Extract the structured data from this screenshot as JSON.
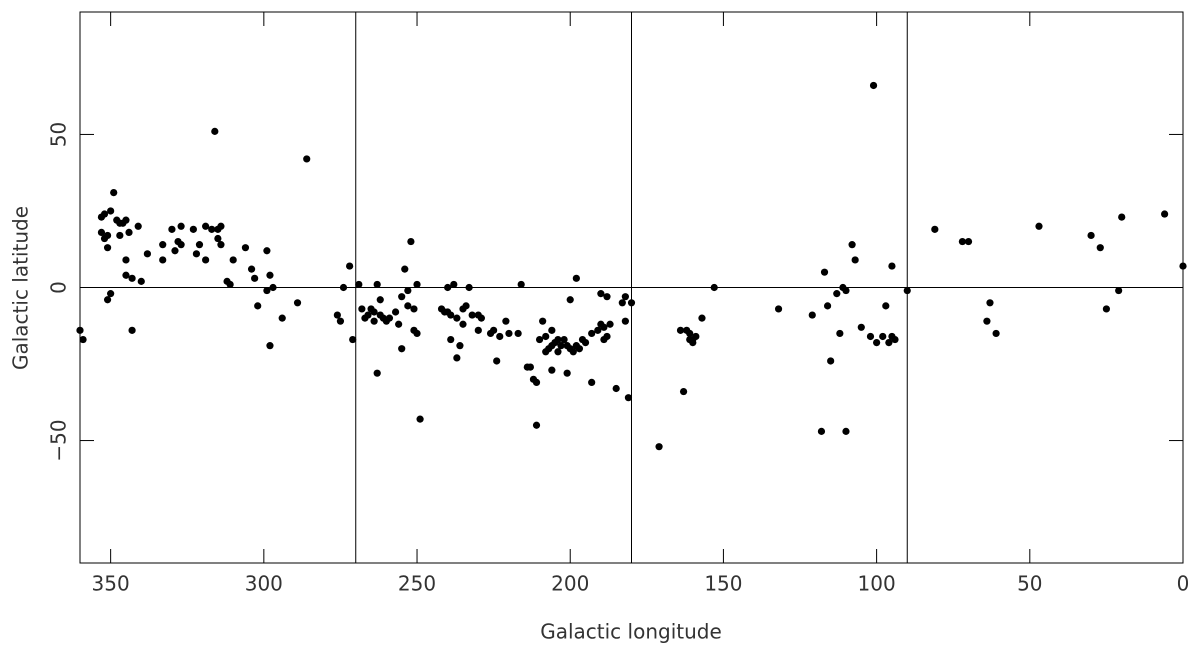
{
  "chart_data": {
    "type": "scatter",
    "xlabel": "Galactic longitude",
    "ylabel": "Galactic latitude",
    "xlim": [
      360,
      0
    ],
    "ylim": [
      -90,
      90
    ],
    "xticks": [
      350,
      300,
      250,
      200,
      150,
      100,
      50,
      0
    ],
    "yticks": [
      {
        "value": -50,
        "label": "−50"
      },
      0,
      50
    ],
    "vlines": [
      270,
      180,
      90
    ],
    "hlines": [
      0
    ],
    "color": "#000000",
    "x": [
      360,
      359,
      353,
      352,
      353,
      352,
      351,
      350,
      351,
      350,
      351,
      349,
      348,
      347,
      347,
      346,
      345,
      345,
      345,
      344,
      343,
      343,
      341,
      340,
      338,
      333,
      333,
      330,
      329,
      328,
      327,
      327,
      323,
      322,
      321,
      319,
      319,
      317,
      316,
      315,
      315,
      314,
      314,
      312,
      311,
      310,
      306,
      304,
      303,
      302,
      299,
      299,
      298,
      298,
      297,
      294,
      289,
      286,
      276,
      275,
      274,
      272,
      271,
      269,
      268,
      267,
      266,
      265,
      264,
      264,
      263,
      263,
      262,
      262,
      261,
      260,
      259,
      257,
      256,
      255,
      255,
      254,
      253,
      253,
      252,
      251,
      251,
      250,
      250,
      249,
      242,
      241,
      240,
      240,
      239,
      239,
      238,
      237,
      237,
      236,
      235,
      235,
      234,
      233,
      232,
      230,
      230,
      229,
      226,
      225,
      224,
      223,
      221,
      220,
      217,
      216,
      214,
      213,
      212,
      211,
      211,
      210,
      209,
      208,
      208,
      207,
      206,
      206,
      206,
      205,
      204,
      204,
      203,
      202,
      201,
      201,
      200,
      200,
      199,
      198,
      198,
      197,
      196,
      195,
      193,
      193,
      191,
      190,
      190,
      189,
      189,
      188,
      188,
      187,
      185,
      183,
      182,
      182,
      181,
      180,
      171,
      164,
      163,
      162,
      161,
      161,
      160,
      160,
      159,
      157,
      153,
      132,
      121,
      118,
      117,
      116,
      115,
      113,
      112,
      111,
      110,
      110,
      108,
      107,
      105,
      101,
      102,
      100,
      98,
      97,
      96,
      95,
      95,
      94,
      90,
      81,
      72,
      70,
      64,
      63,
      61,
      47,
      30,
      27,
      25,
      21,
      20,
      6,
      0
    ],
    "values": [
      -14,
      -17,
      23,
      24,
      18,
      16,
      17,
      25,
      13,
      -2,
      -4,
      31,
      22,
      17,
      21,
      21,
      22,
      4,
      9,
      18,
      -14,
      3,
      20,
      2,
      11,
      14,
      9,
      19,
      12,
      15,
      14,
      20,
      19,
      11,
      14,
      20,
      9,
      19,
      51,
      19,
      16,
      20,
      14,
      2,
      1,
      9,
      13,
      6,
      3,
      -6,
      12,
      -1,
      4,
      -19,
      0,
      -10,
      -5,
      42,
      -9,
      -11,
      0,
      7,
      -17,
      1,
      -7,
      -10,
      -9,
      -7,
      -11,
      -8,
      -28,
      1,
      -4,
      -9,
      -10,
      -11,
      -10,
      -8,
      -12,
      -20,
      -3,
      6,
      -6,
      -1,
      15,
      -7,
      -14,
      -15,
      1,
      -43,
      -7,
      -8,
      -8,
      0,
      -17,
      -9,
      1,
      -23,
      -10,
      -19,
      -12,
      -7,
      -6,
      0,
      -9,
      -14,
      -9,
      -10,
      -15,
      -14,
      -24,
      -16,
      -11,
      -15,
      -15,
      1,
      -26,
      -26,
      -30,
      -31,
      -45,
      -17,
      -11,
      -16,
      -21,
      -20,
      -19,
      -14,
      -27,
      -18,
      -17,
      -21,
      -19,
      -17,
      -28,
      -19,
      -4,
      -20,
      -21,
      -19,
      3,
      -20,
      -17,
      -18,
      -31,
      -15,
      -14,
      -2,
      -12,
      -17,
      -13,
      -3,
      -16,
      -12,
      -33,
      -5,
      -3,
      -11,
      -36,
      -5,
      -52,
      -14,
      -34,
      -14,
      -15,
      -17,
      -18,
      -17,
      -16,
      -10,
      0,
      -7,
      -9,
      -47,
      5,
      -6,
      -24,
      -2,
      -15,
      0,
      -1,
      -47,
      14,
      9,
      -13,
      66,
      -16,
      -18,
      -16,
      -6,
      -18,
      7,
      -16,
      -17,
      -1,
      19,
      15,
      15,
      -11,
      -5,
      -15,
      20,
      17,
      13,
      -7,
      -1,
      23,
      24,
      7
    ]
  }
}
